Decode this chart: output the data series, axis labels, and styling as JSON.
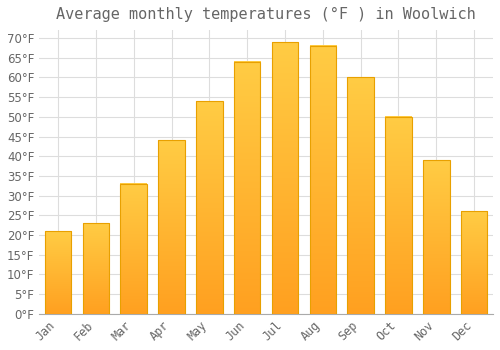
{
  "title": "Average monthly temperatures (°F ) in Woolwich",
  "months": [
    "Jan",
    "Feb",
    "Mar",
    "Apr",
    "May",
    "Jun",
    "Jul",
    "Aug",
    "Sep",
    "Oct",
    "Nov",
    "Dec"
  ],
  "values": [
    21,
    23,
    33,
    44,
    54,
    64,
    69,
    68,
    60,
    50,
    39,
    26
  ],
  "bar_color_top": "#FFCC44",
  "bar_color_bottom": "#FFA020",
  "bar_edge_color": "#E8A000",
  "background_color": "#FFFFFF",
  "grid_color": "#DDDDDD",
  "text_color": "#666666",
  "ylim": [
    0,
    72
  ],
  "yticks": [
    0,
    5,
    10,
    15,
    20,
    25,
    30,
    35,
    40,
    45,
    50,
    55,
    60,
    65,
    70
  ],
  "title_fontsize": 11,
  "tick_fontsize": 8.5
}
